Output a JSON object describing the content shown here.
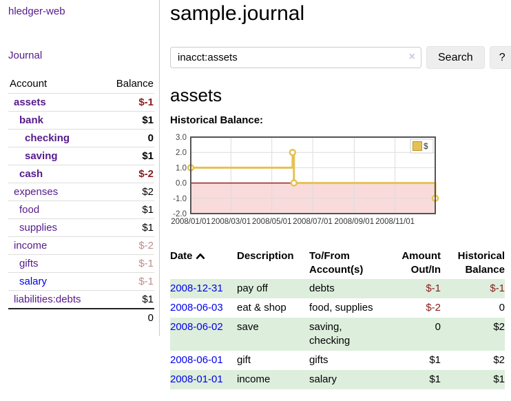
{
  "app": {
    "brand": "hledger-web",
    "nav_journal": "Journal"
  },
  "icons": {
    "clear_search": "×",
    "sort_ascending": "chevron-up",
    "legend_swatch": "gold-square"
  },
  "colors": {
    "link_purple": "#551A8B",
    "link_blue": "#0000EE",
    "negative_strong": "#8B1A1A",
    "negative_soft": "#BE8C8C",
    "row_green": "#DDEEDD",
    "chart_line": "#E6C153",
    "chart_negative_region": "#F9DBDB",
    "chart_zero_line": "#8B0000"
  },
  "header": {
    "title": "sample.journal"
  },
  "search": {
    "value": "inacct:assets",
    "button_label": "Search",
    "help_label": "?"
  },
  "sidebar": {
    "col_account": "Account",
    "col_balance": "Balance",
    "accounts": [
      {
        "name": "assets",
        "indent": 1,
        "balance": "$-1",
        "bold": true,
        "neg": "strong"
      },
      {
        "name": "bank",
        "indent": 2,
        "balance": "$1",
        "bold": true,
        "neg": null
      },
      {
        "name": "checking",
        "indent": 3,
        "balance": "0",
        "bold": true,
        "neg": null
      },
      {
        "name": "saving",
        "indent": 3,
        "balance": "$1",
        "bold": true,
        "neg": null
      },
      {
        "name": "cash",
        "indent": 2,
        "balance": "$-2",
        "bold": true,
        "neg": "strong"
      },
      {
        "name": "expenses",
        "indent": 1,
        "balance": "$2",
        "bold": false,
        "neg": null
      },
      {
        "name": "food",
        "indent": 2,
        "balance": "$1",
        "bold": false,
        "neg": null
      },
      {
        "name": "supplies",
        "indent": 2,
        "balance": "$1",
        "bold": false,
        "neg": null
      },
      {
        "name": "income",
        "indent": 1,
        "balance": "$-2",
        "bold": false,
        "neg": "soft"
      },
      {
        "name": "gifts",
        "indent": 2,
        "balance": "$-1",
        "bold": false,
        "neg": "soft"
      },
      {
        "name": "salary",
        "indent": 2,
        "balance": "$-1",
        "bold": false,
        "neg": "soft",
        "link_color": "blue"
      },
      {
        "name": "liabilities:debts",
        "indent": 1,
        "balance": "$1",
        "bold": false,
        "neg": null
      }
    ],
    "total": "0"
  },
  "account_page": {
    "title": "assets",
    "section_label": "Historical Balance:"
  },
  "chart_data": {
    "type": "line",
    "step": true,
    "title": "Historical Balance:",
    "series": [
      {
        "name": "$",
        "color": "#E6C153",
        "points": [
          [
            "2008-01-01",
            1
          ],
          [
            "2008-06-01",
            2
          ],
          [
            "2008-06-03",
            0
          ],
          [
            "2008-12-31",
            -1
          ]
        ],
        "points_days": [
          [
            0,
            1
          ],
          [
            152,
            2
          ],
          [
            154,
            0
          ],
          [
            365,
            -1
          ]
        ]
      }
    ],
    "x_ticks": [
      "2008/01/01",
      "2008/03/01",
      "2008/05/01",
      "2008/07/01",
      "2008/09/01",
      "2008/11/01"
    ],
    "x_tick_days": [
      0,
      60,
      121,
      182,
      244,
      305
    ],
    "x_range_days": [
      0,
      365
    ],
    "y_ticks": [
      "3.0",
      "2.0",
      "1.0",
      "0.0",
      "-1.0",
      "-2.0"
    ],
    "y_tick_values": [
      3,
      2,
      1,
      0,
      -1,
      -2
    ],
    "ylim": [
      -2,
      3
    ],
    "grid": true,
    "legend_position": "top-right",
    "negative_region_color": "#F9DBDB",
    "zero_line_color": "#8B0000",
    "border_color": "#545454"
  },
  "register": {
    "columns": {
      "date": "Date",
      "description": "Description",
      "accounts": "To/From Account(s)",
      "amount": "Amount Out/In",
      "balance": "Historical Balance"
    },
    "rows": [
      {
        "date": "2008-12-31",
        "description": "pay off",
        "accounts": "debts",
        "amount": "$-1",
        "balance": "$-1",
        "shaded": true
      },
      {
        "date": "2008-06-03",
        "description": "eat & shop",
        "accounts": "food, supplies",
        "amount": "$-2",
        "balance": "0",
        "shaded": false
      },
      {
        "date": "2008-06-02",
        "description": "save",
        "accounts": "saving, checking",
        "amount": "0",
        "balance": "$2",
        "shaded": true
      },
      {
        "date": "2008-06-01",
        "description": "gift",
        "accounts": "gifts",
        "amount": "$1",
        "balance": "$2",
        "shaded": false
      },
      {
        "date": "2008-01-01",
        "description": "income",
        "accounts": "salary",
        "amount": "$1",
        "balance": "$1",
        "shaded": true
      }
    ]
  }
}
